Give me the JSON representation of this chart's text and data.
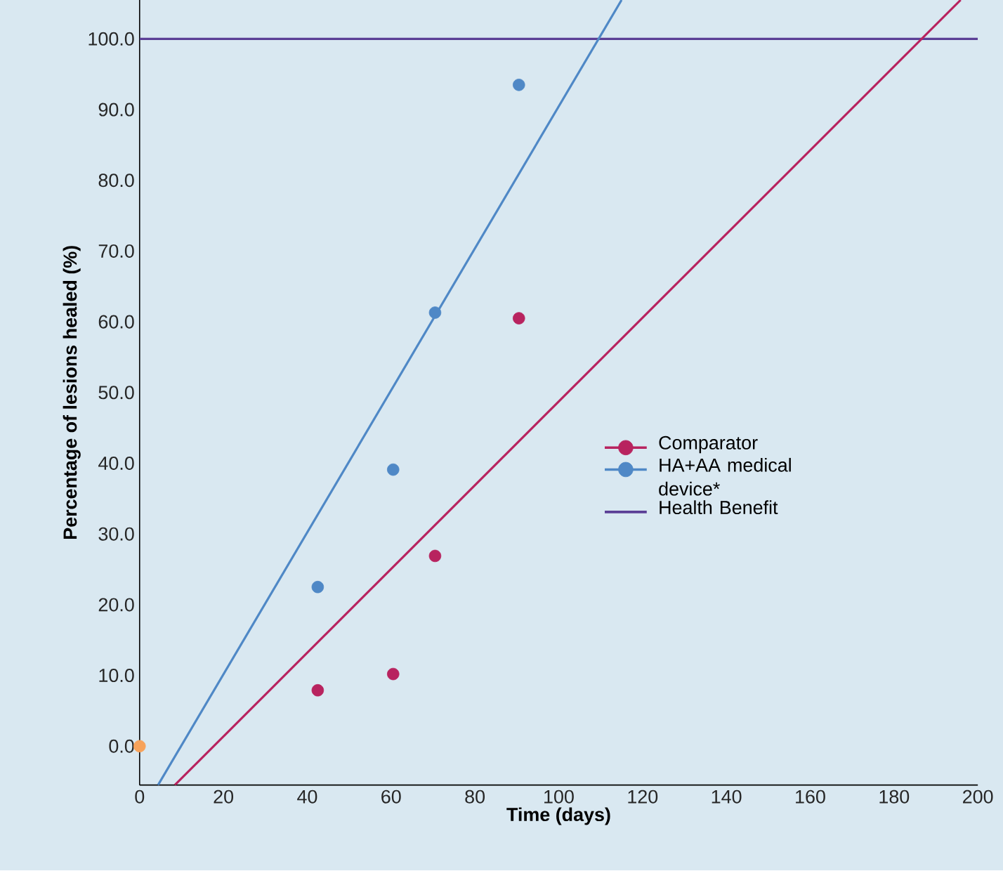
{
  "chart_data": {
    "type": "line",
    "xlabel": "Time  (days)",
    "ylabel": "Percentage of lesions healed (%)",
    "xlim": [
      0,
      200
    ],
    "ylim": [
      -5.5,
      105.5
    ],
    "xticks": [
      0,
      20,
      40,
      60,
      80,
      100,
      120,
      140,
      160,
      180,
      200
    ],
    "yticks": [
      {
        "value": 0,
        "label": "0.0"
      },
      {
        "value": 10,
        "label": "10.0"
      },
      {
        "value": 20,
        "label": "20.0"
      },
      {
        "value": 30,
        "label": "30.0"
      },
      {
        "value": 40,
        "label": "40.0"
      },
      {
        "value": 50,
        "label": "50.0"
      },
      {
        "value": 60,
        "label": "60.0"
      },
      {
        "value": 70,
        "label": "70.0"
      },
      {
        "value": 80,
        "label": "80.0"
      },
      {
        "value": 90,
        "label": "90.0"
      },
      {
        "value": 100,
        "label": "100.0"
      }
    ],
    "legend": "right",
    "grid": false,
    "series": [
      {
        "name": "Comparator",
        "type": "scatter",
        "marker": "circle",
        "color": "#b8235f",
        "x": [
          42.5,
          60.5,
          70.5,
          90.5
        ],
        "values": [
          7.9,
          10.2,
          26.9,
          60.5
        ]
      },
      {
        "name": "HA+AA medical device*",
        "type": "scatter",
        "marker": "circle",
        "color": "#4f88c6",
        "x": [
          42.5,
          60.5,
          70.5,
          90.5
        ],
        "values": [
          22.5,
          39.1,
          61.3,
          93.5
        ]
      },
      {
        "name": "Health Benefit",
        "color": "#5b3f96",
        "x": [
          0,
          200
        ],
        "values": [
          100,
          100
        ]
      },
      {
        "color": "#b8235f",
        "x": [
          8.4,
          195.9
        ],
        "values": [
          -5.5,
          105.5
        ]
      },
      {
        "color": "#4f88c6",
        "x": [
          4.4,
          115
        ],
        "values": [
          -5.5,
          105.5
        ]
      },
      {
        "type": "scatter",
        "marker": "circle",
        "color": "#f7a25a",
        "x": [
          0
        ],
        "values": [
          0
        ]
      }
    ]
  }
}
